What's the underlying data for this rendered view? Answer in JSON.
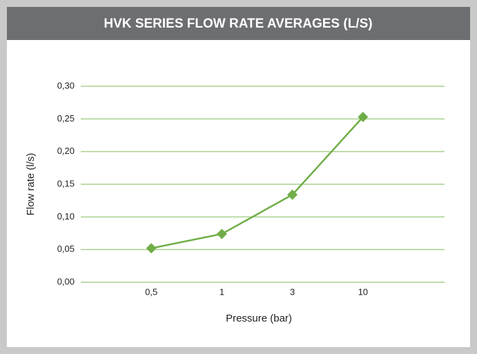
{
  "chart_data": {
    "type": "line",
    "title": "HVK SERIES FLOW RATE AVERAGES (L/S)",
    "x_label": "Pressure (bar)",
    "y_label": "Flow rate (l/s)",
    "categories": [
      "0,5",
      "1",
      "3",
      "10"
    ],
    "series": [
      {
        "name": "Flow rate",
        "color": "#70ad47",
        "values": [
          0.052,
          0.074,
          0.134,
          0.253
        ]
      }
    ],
    "ylim": [
      0,
      0.3
    ],
    "yticks": [
      {
        "value": 0,
        "label": "0,00"
      },
      {
        "value": 0.05,
        "label": "0,05"
      },
      {
        "value": 0.1,
        "label": "0,10"
      },
      {
        "value": 0.15,
        "label": "0,15"
      },
      {
        "value": 0.2,
        "label": "0,20"
      },
      {
        "value": 0.25,
        "label": "0,25"
      },
      {
        "value": 0.3,
        "label": "0,30"
      }
    ],
    "grid": true,
    "grid_color": "#a9d18e"
  }
}
